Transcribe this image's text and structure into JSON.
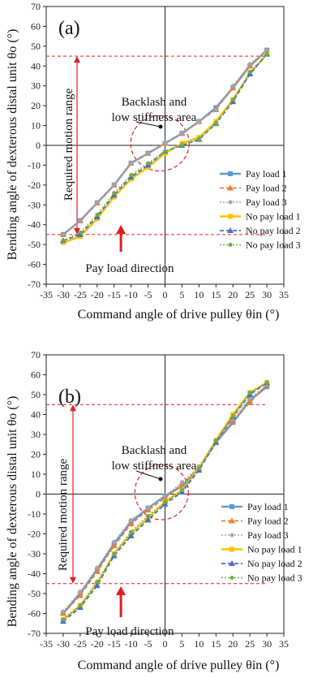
{
  "colors": {
    "pay1": "#5b9bd5",
    "pay2": "#ed7d31",
    "pay3": "#a5a5a5",
    "nopay1": "#ffc000",
    "nopay2": "#4472c4",
    "nopay3": "#70ad47",
    "guide": "#e02020"
  },
  "chart_data": [
    {
      "type": "line",
      "panel_label": "(a)",
      "xlabel": "Command angle of drive pulley θin (°)",
      "ylabel": "Bending angle of dexterous distal unit θo (°)",
      "xlim": [
        -35,
        35
      ],
      "ylim": [
        -70,
        70
      ],
      "x_ticks": [
        "-35",
        "-30",
        "-25",
        "-20",
        "-15",
        "-10",
        "-5",
        "0",
        "5",
        "10",
        "15",
        "20",
        "25",
        "30",
        "35"
      ],
      "y_ticks": [
        "-70",
        "-60",
        "-50",
        "-40",
        "-30",
        "-20",
        "-10",
        "0",
        "10",
        "20",
        "30",
        "40",
        "50",
        "60",
        "70"
      ],
      "grid": false,
      "legend_position": "bottom-right",
      "x": [
        -30,
        -25,
        -20,
        -15,
        -10,
        -5,
        0,
        5,
        10,
        15,
        20,
        25,
        30
      ],
      "series": [
        {
          "name": "Pay load 1",
          "values": [
            -45,
            -38,
            -29,
            -20,
            -9,
            -4,
            1,
            6,
            12,
            19,
            29,
            40,
            48
          ]
        },
        {
          "name": "Pay load 2",
          "values": [
            -45,
            -38,
            -29,
            -20,
            -9,
            -4,
            1,
            6,
            12,
            18,
            29,
            40,
            48
          ]
        },
        {
          "name": "Pay load 3",
          "values": [
            -45,
            -38,
            -29,
            -20,
            -9,
            -4,
            1,
            6,
            12,
            18,
            30,
            41,
            48
          ]
        },
        {
          "name": "No pay load 1",
          "values": [
            -49,
            -46,
            -37,
            -26,
            -17,
            -11,
            -4,
            1,
            4,
            12,
            23,
            36,
            46
          ]
        },
        {
          "name": "No pay load 2",
          "values": [
            -48,
            -45,
            -36,
            -25,
            -16,
            -10,
            -3,
            0,
            3,
            11,
            22,
            36,
            46
          ]
        },
        {
          "name": "No pay load 3",
          "values": [
            -48,
            -44,
            -35,
            -24,
            -15,
            -9,
            -3,
            0,
            3,
            11,
            23,
            37,
            46
          ]
        }
      ],
      "annotations": {
        "range_label": "Required motion range",
        "range": [
          -45,
          45
        ],
        "area_label_line1": "Backlash and",
        "area_label_line2": "low stiffness area",
        "arrow_label": "Pay load direction"
      }
    },
    {
      "type": "line",
      "panel_label": "(b)",
      "xlabel": "Command angle of drive pulley θin (°)",
      "ylabel": "Bending angle of dexterous distal unit θo (°)",
      "xlim": [
        -35,
        35
      ],
      "ylim": [
        -70,
        70
      ],
      "x_ticks": [
        "-35",
        "-30",
        "-25",
        "-20",
        "-15",
        "-10",
        "-5",
        "0",
        "5",
        "10",
        "15",
        "20",
        "25",
        "30",
        "35"
      ],
      "y_ticks": [
        "-70",
        "-60",
        "-50",
        "-40",
        "-30",
        "-20",
        "-10",
        "0",
        "10",
        "20",
        "30",
        "40",
        "50",
        "60",
        "70"
      ],
      "grid": false,
      "legend_position": "bottom-right",
      "x": [
        -30,
        -25,
        -20,
        -15,
        -10,
        -5,
        0,
        5,
        10,
        15,
        20,
        25,
        30
      ],
      "series": [
        {
          "name": "Pay load 1",
          "values": [
            -60,
            -50,
            -38,
            -25,
            -14,
            -7,
            -1,
            4,
            13,
            26,
            36,
            47,
            54
          ]
        },
        {
          "name": "Pay load 2",
          "values": [
            -60,
            -51,
            -39,
            -26,
            -15,
            -8,
            -2,
            5,
            13,
            26,
            37,
            46,
            55
          ]
        },
        {
          "name": "Pay load 3",
          "values": [
            -59,
            -49,
            -37,
            -24,
            -13,
            -7,
            -1,
            6,
            14,
            27,
            38,
            48,
            55
          ]
        },
        {
          "name": "No pay load 1",
          "values": [
            -63,
            -56,
            -45,
            -30,
            -20,
            -12,
            -4,
            2,
            13,
            27,
            40,
            51,
            56
          ]
        },
        {
          "name": "No pay load 2",
          "values": [
            -64,
            -57,
            -46,
            -31,
            -21,
            -13,
            -5,
            1,
            12,
            26,
            39,
            50,
            56
          ]
        },
        {
          "name": "No pay load 3",
          "values": [
            -63,
            -56,
            -44,
            -30,
            -19,
            -11,
            -4,
            2,
            13,
            27,
            39,
            51,
            56
          ]
        }
      ],
      "annotations": {
        "range_label": "Required motion range",
        "range": [
          -45,
          45
        ],
        "area_label_line1": "Backlash and",
        "area_label_line2": "low stiffness area",
        "arrow_label": "Pay load direction"
      }
    }
  ]
}
